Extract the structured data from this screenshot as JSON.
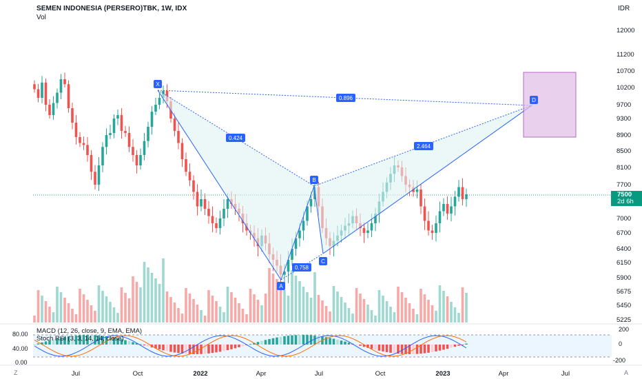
{
  "header": {
    "symbol_line": "SEMEN INDONESIA (PERSERO)TBK, 1W, IDX",
    "volume_label": "Vol",
    "currency": "IDR"
  },
  "price_badge": {
    "price": "7500",
    "countdown": "2d 6h"
  },
  "indicators": {
    "macd_label": "MACD (12, 26, close, 9, EMA, EMA)",
    "stoch_label": "Stoch RSI (3, 3, 14, 14, close)"
  },
  "axis": {
    "price_ticks": [
      "12000",
      "11200",
      "10700",
      "10200",
      "9700",
      "9300",
      "8900",
      "8500",
      "8100",
      "7700",
      "7000",
      "6700",
      "6400",
      "6150",
      "5900",
      "5675",
      "5450",
      "5225"
    ],
    "macd_ticks": [
      "200",
      "0",
      "-200"
    ],
    "stoch_ticks": [
      "80.00",
      "40.00",
      "0.00"
    ],
    "time_ticks": [
      "Jul",
      "Oct",
      "2022",
      "Apr",
      "Jul",
      "Oct",
      "2023",
      "Apr",
      "Jul"
    ]
  },
  "corners": {
    "left": "Z",
    "right": "A"
  },
  "pattern": {
    "points": [
      "X",
      "A",
      "B",
      "C",
      "D"
    ],
    "ratios": [
      "0.424",
      "0.758",
      "2.464",
      "0.896"
    ]
  },
  "colors": {
    "up": "#26a69a",
    "down": "#ef5350",
    "pattern": "#2962ff",
    "zone": "#9c27b0"
  }
}
